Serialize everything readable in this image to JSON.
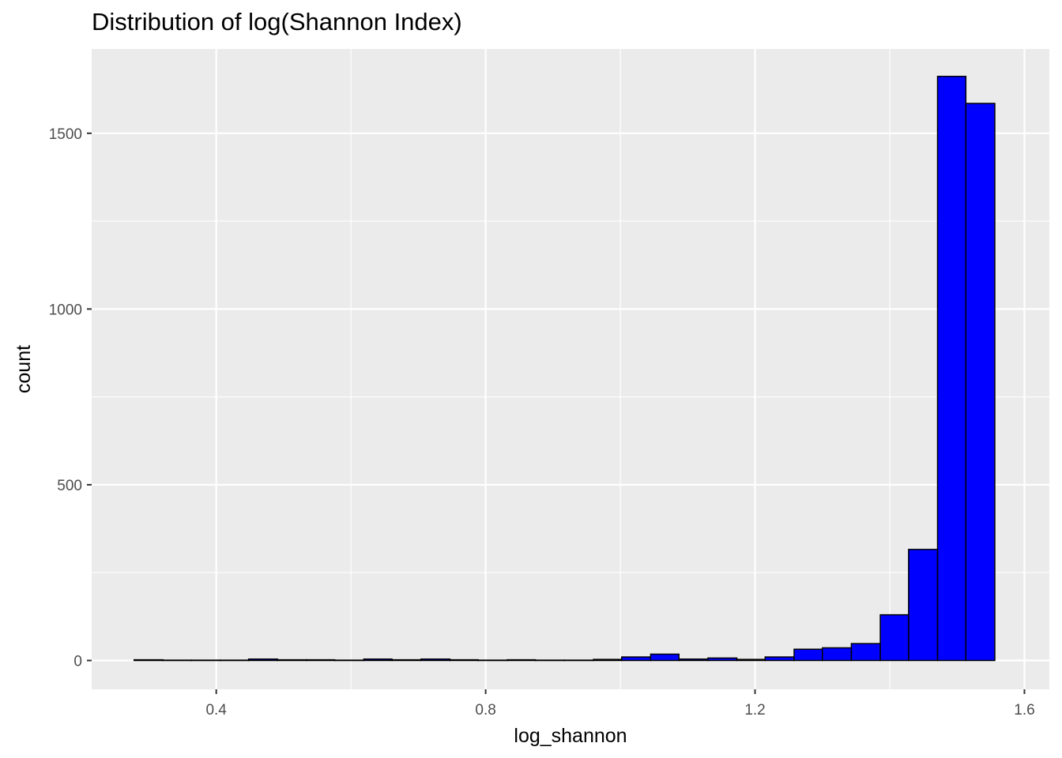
{
  "chart_data": {
    "type": "bar",
    "title": "Distribution of log(Shannon Index)",
    "xlabel": "log_shannon",
    "ylabel": "count",
    "xlim": [
      0.215,
      1.637
    ],
    "ylim": [
      -82,
      1740
    ],
    "x_ticks": [
      0.4,
      0.8,
      1.2,
      1.6
    ],
    "x_tick_labels": [
      "0.4",
      "0.8",
      "1.2",
      "1.6"
    ],
    "y_ticks": [
      0,
      500,
      1000,
      1500
    ],
    "y_tick_labels": [
      "0",
      "500",
      "1000",
      "1500"
    ],
    "grid": true,
    "legend": "none",
    "bin_width": 0.0426,
    "bins": [
      {
        "x0": 0.278,
        "x1": 0.321,
        "count": 2
      },
      {
        "x0": 0.321,
        "x1": 0.363,
        "count": 1
      },
      {
        "x0": 0.363,
        "x1": 0.406,
        "count": 1
      },
      {
        "x0": 0.406,
        "x1": 0.448,
        "count": 1
      },
      {
        "x0": 0.448,
        "x1": 0.491,
        "count": 4
      },
      {
        "x0": 0.491,
        "x1": 0.534,
        "count": 2
      },
      {
        "x0": 0.534,
        "x1": 0.576,
        "count": 2
      },
      {
        "x0": 0.576,
        "x1": 0.619,
        "count": 1
      },
      {
        "x0": 0.619,
        "x1": 0.661,
        "count": 4
      },
      {
        "x0": 0.661,
        "x1": 0.704,
        "count": 2
      },
      {
        "x0": 0.704,
        "x1": 0.747,
        "count": 4
      },
      {
        "x0": 0.747,
        "x1": 0.789,
        "count": 2
      },
      {
        "x0": 0.789,
        "x1": 0.832,
        "count": 1
      },
      {
        "x0": 0.832,
        "x1": 0.874,
        "count": 2
      },
      {
        "x0": 0.874,
        "x1": 0.917,
        "count": 1
      },
      {
        "x0": 0.917,
        "x1": 0.96,
        "count": 1
      },
      {
        "x0": 0.96,
        "x1": 1.002,
        "count": 3
      },
      {
        "x0": 1.002,
        "x1": 1.045,
        "count": 10
      },
      {
        "x0": 1.045,
        "x1": 1.087,
        "count": 18
      },
      {
        "x0": 1.087,
        "x1": 1.13,
        "count": 4
      },
      {
        "x0": 1.13,
        "x1": 1.173,
        "count": 7
      },
      {
        "x0": 1.173,
        "x1": 1.215,
        "count": 3
      },
      {
        "x0": 1.215,
        "x1": 1.258,
        "count": 10
      },
      {
        "x0": 1.258,
        "x1": 1.3,
        "count": 32
      },
      {
        "x0": 1.3,
        "x1": 1.343,
        "count": 36
      },
      {
        "x0": 1.343,
        "x1": 1.386,
        "count": 48
      },
      {
        "x0": 1.386,
        "x1": 1.428,
        "count": 130
      },
      {
        "x0": 1.428,
        "x1": 1.471,
        "count": 316
      },
      {
        "x0": 1.471,
        "x1": 1.513,
        "count": 1662
      },
      {
        "x0": 1.513,
        "x1": 1.556,
        "count": 1585
      }
    ],
    "colors": {
      "fill": "#0000FF",
      "outline": "#000000",
      "panel": "#EBEBEB",
      "grid": "#FFFFFF"
    }
  }
}
